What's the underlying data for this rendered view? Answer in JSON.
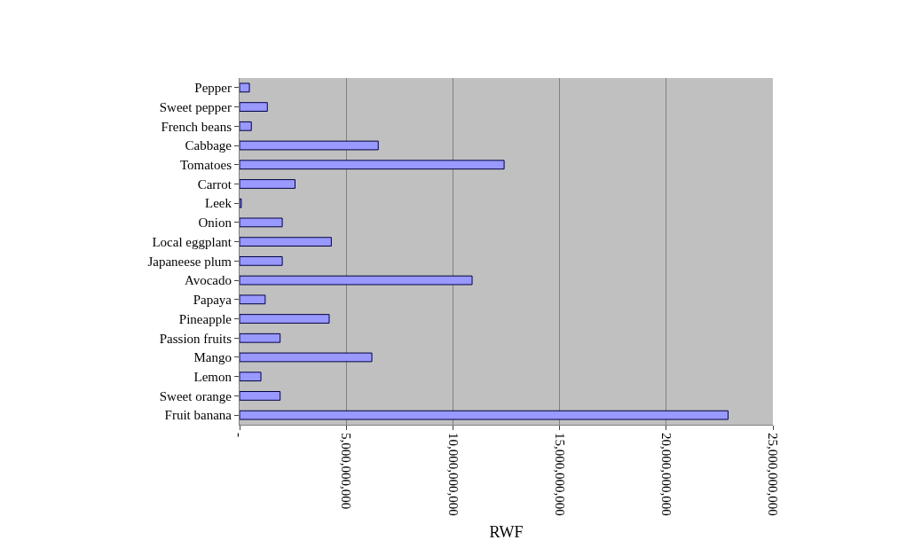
{
  "chart_data": {
    "type": "bar",
    "orientation": "horizontal",
    "xlabel": "RWF",
    "categories": [
      "Pepper",
      "Sweet pepper",
      "French beans",
      "Cabbage",
      "Tomatoes",
      "Carrot",
      "Leek",
      "Onion",
      "Local eggplant",
      "Japaneese plum",
      "Avocado",
      "Papaya",
      "Pineapple",
      "Passion fruits",
      "Mango",
      "Lemon",
      "Sweet orange",
      "Fruit banana"
    ],
    "values": [
      460000000,
      1300000000,
      550000000,
      6500000000,
      12400000000,
      2600000000,
      80000000,
      2000000000,
      4300000000,
      2000000000,
      10900000000,
      1200000000,
      4200000000,
      1900000000,
      6200000000,
      1000000000,
      1900000000,
      22900000000
    ],
    "color": "#9999ff",
    "xlim": [
      0,
      25000000000
    ],
    "xticks": [
      {
        "value": 0,
        "label": "-"
      },
      {
        "value": 5000000000,
        "label": "5,000,000,000"
      },
      {
        "value": 10000000000,
        "label": "10,000,000,000"
      },
      {
        "value": 15000000000,
        "label": "15,000,000,000"
      },
      {
        "value": 20000000000,
        "label": "20,000,000,000"
      },
      {
        "value": 25000000000,
        "label": "25,000,000,000"
      }
    ],
    "grid": "x"
  }
}
